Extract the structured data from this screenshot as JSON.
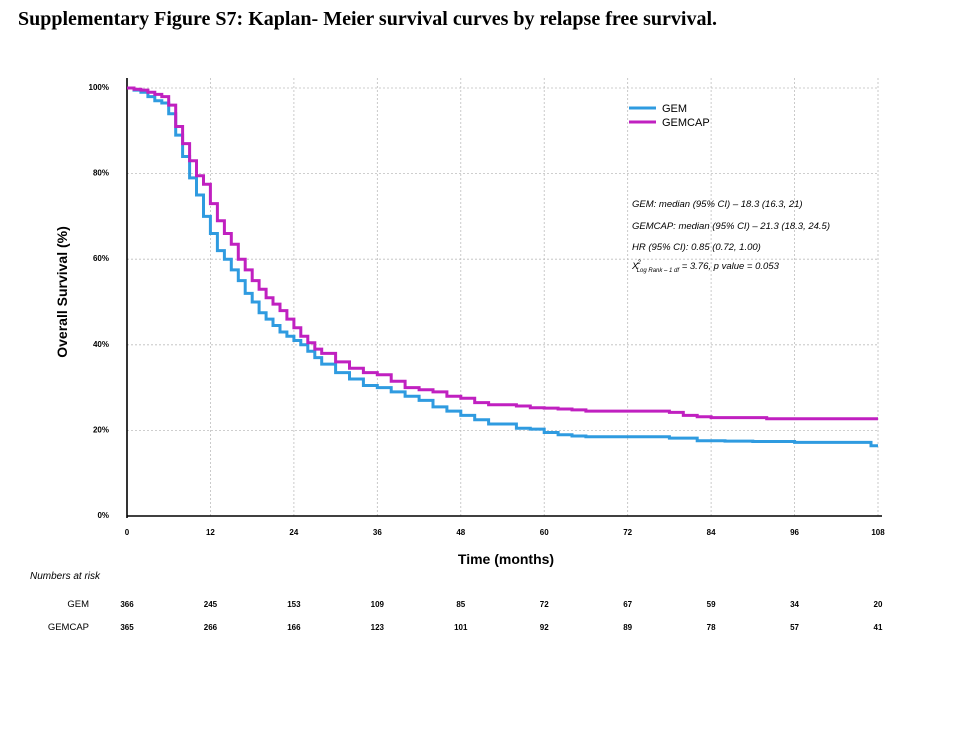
{
  "figure": {
    "title": "Supplementary Figure S7: Kaplan- Meier survival curves by relapse free survival."
  },
  "chart_data": {
    "type": "line",
    "title": "Supplementary Figure S7: Kaplan- Meier survival curves by relapse free survival.",
    "xlabel": "Time (months)",
    "ylabel": "Overall Survival (%)",
    "xlim": [
      0,
      108
    ],
    "ylim": [
      0,
      100
    ],
    "grid": true,
    "legend_position": "top-right",
    "xticks": [
      0,
      12,
      24,
      36,
      48,
      60,
      72,
      84,
      96,
      108
    ],
    "yticks": [
      0,
      20,
      40,
      60,
      80,
      100
    ],
    "ytick_labels": [
      "0%",
      "20%",
      "40%",
      "60%",
      "80%",
      "100%"
    ],
    "series": [
      {
        "name": "GEM",
        "color": "#2f9be0",
        "x": [
          0,
          1,
          2,
          3,
          4,
          5,
          6,
          7,
          8,
          9,
          10,
          11,
          12,
          13,
          14,
          15,
          16,
          17,
          18,
          19,
          20,
          21,
          22,
          23,
          24,
          25,
          26,
          27,
          28,
          30,
          32,
          34,
          36,
          38,
          40,
          42,
          44,
          46,
          48,
          50,
          52,
          54,
          56,
          58,
          60,
          62,
          64,
          66,
          70,
          74,
          78,
          82,
          86,
          90,
          96,
          100,
          104,
          107,
          108
        ],
        "y": [
          100,
          99.5,
          99,
          98,
          97,
          96.5,
          94,
          89,
          84,
          79,
          75,
          70,
          66,
          62,
          60,
          57.5,
          55,
          52,
          50,
          47.5,
          46,
          44.5,
          43,
          42,
          41,
          40,
          38.5,
          37,
          35.5,
          33.5,
          32,
          30.5,
          30,
          29,
          28,
          27,
          25.5,
          24.5,
          23.5,
          22.5,
          21.5,
          21.5,
          20.5,
          20.3,
          19.5,
          19,
          18.7,
          18.5,
          18.5,
          18.5,
          18.2,
          17.6,
          17.5,
          17.4,
          17.2,
          17.2,
          17.2,
          16.4,
          16.4
        ]
      },
      {
        "name": "GEMCAP",
        "color": "#c020c0",
        "x": [
          0,
          1,
          2,
          3,
          4,
          5,
          6,
          7,
          8,
          9,
          10,
          11,
          12,
          13,
          14,
          15,
          16,
          17,
          18,
          19,
          20,
          21,
          22,
          23,
          24,
          25,
          26,
          27,
          28,
          30,
          32,
          34,
          36,
          38,
          40,
          42,
          44,
          46,
          48,
          50,
          52,
          54,
          56,
          58,
          60,
          62,
          64,
          66,
          70,
          74,
          78,
          80,
          82,
          84,
          88,
          92,
          96,
          100,
          104,
          108
        ],
        "y": [
          100,
          99.7,
          99.5,
          99,
          98.5,
          98,
          96,
          91,
          87,
          83,
          79.5,
          77.5,
          73,
          69,
          66,
          63.5,
          60,
          57.5,
          55,
          53,
          51,
          49.5,
          48,
          46,
          44,
          42,
          40.5,
          39,
          38,
          36,
          34.5,
          33.5,
          33,
          31.5,
          30,
          29.5,
          29,
          28,
          27.5,
          26.5,
          26,
          26,
          25.7,
          25.3,
          25.2,
          25,
          24.8,
          24.5,
          24.5,
          24.5,
          24.2,
          23.5,
          23.2,
          23,
          23,
          22.7,
          22.7,
          22.7,
          22.7,
          22.7
        ]
      }
    ],
    "legend": [
      {
        "label": "GEM",
        "color": "#2f9be0"
      },
      {
        "label": "GEMCAP",
        "color": "#c020c0"
      }
    ],
    "annotations": {
      "gem_median": "GEM: median (95% CI) –  18.3 (16.3, 21)",
      "gemcap_median": "GEMCAP: median (95% CI) –  21.3 (18.3, 24.5)",
      "hr": "HR (95% CI): 0.85 (0.72, 1.00)",
      "chi_symbol": "X",
      "chi_sup": "2",
      "chi_sub": "Log Rank – 1 df",
      "chi_rest": " = 3.76, p value = 0.053"
    },
    "risk_table": {
      "title": "Numbers at risk",
      "times": [
        0,
        12,
        24,
        36,
        48,
        60,
        72,
        84,
        96,
        108
      ],
      "rows": [
        {
          "label": "GEM",
          "values": [
            366,
            245,
            153,
            109,
            85,
            72,
            67,
            59,
            34,
            20
          ]
        },
        {
          "label": "GEMCAP",
          "values": [
            365,
            266,
            166,
            123,
            101,
            92,
            89,
            78,
            57,
            41
          ]
        }
      ]
    }
  }
}
